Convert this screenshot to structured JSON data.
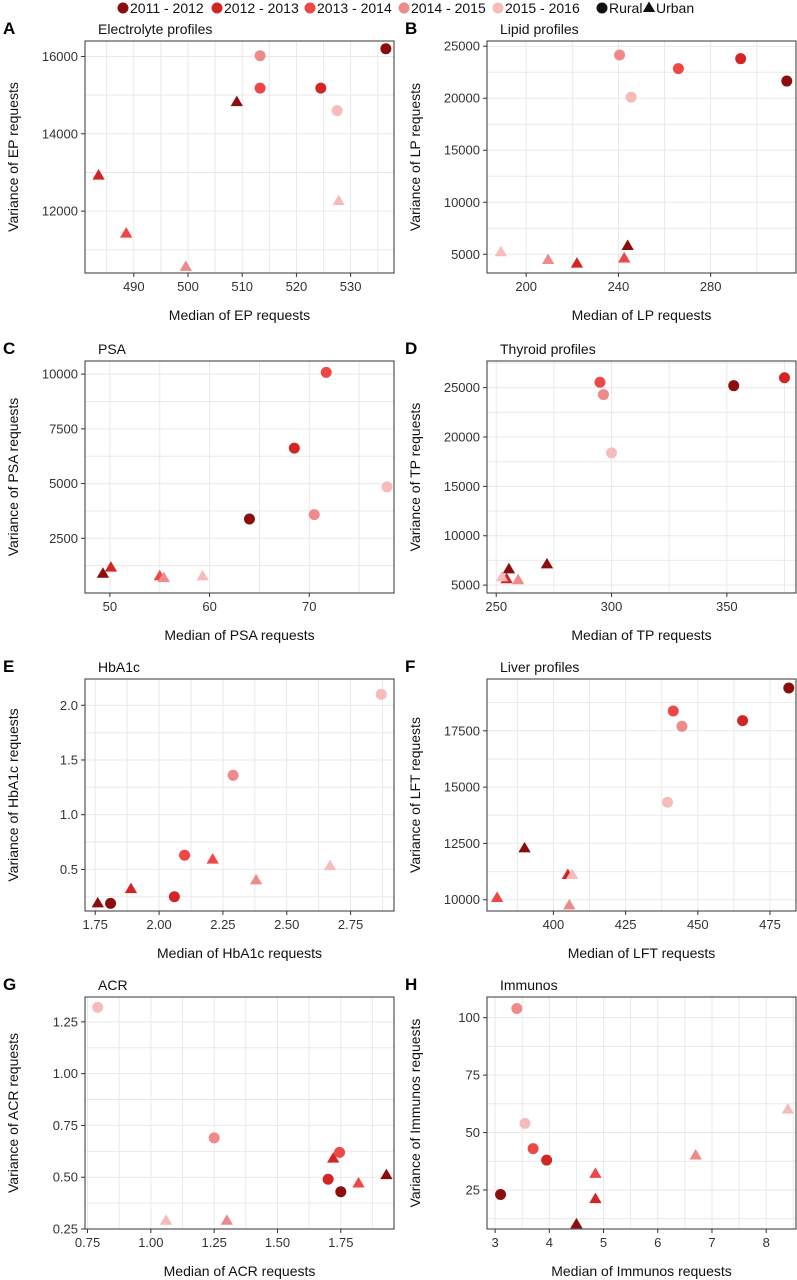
{
  "legend": {
    "years": [
      {
        "label": "2011 - 2012",
        "color": "#8b0d0d"
      },
      {
        "label": "2012 - 2013",
        "color": "#d42525"
      },
      {
        "label": "2013 - 2014",
        "color": "#ee4747"
      },
      {
        "label": "2014 - 2015",
        "color": "#ef8a8a"
      },
      {
        "label": "2015 - 2016",
        "color": "#f6bcbc"
      }
    ],
    "shapes": [
      {
        "label": "Rural",
        "shape": "circle"
      },
      {
        "label": "Urban",
        "shape": "triangle"
      }
    ]
  },
  "chart_data": [
    {
      "letter": "A",
      "title": "Electrolyte profiles",
      "type": "scatter",
      "xlabel": "Median of EP requests",
      "ylabel": "Variance of EP requests",
      "xlim": [
        481,
        538
      ],
      "ylim": [
        10400,
        16400
      ],
      "xticks": [
        490,
        500,
        510,
        520,
        530
      ],
      "yticks": [
        12000,
        14000,
        16000
      ],
      "points": [
        {
          "x": 536.5,
          "y": 16200,
          "year": 0,
          "shape": "circle"
        },
        {
          "x": 513.3,
          "y": 16020,
          "year": 3,
          "shape": "circle"
        },
        {
          "x": 513.3,
          "y": 15180,
          "year": 2,
          "shape": "circle"
        },
        {
          "x": 524.5,
          "y": 15180,
          "year": 1,
          "shape": "circle"
        },
        {
          "x": 527.5,
          "y": 14600,
          "year": 4,
          "shape": "circle"
        },
        {
          "x": 509.0,
          "y": 14820,
          "year": 0,
          "shape": "triangle"
        },
        {
          "x": 483.5,
          "y": 12920,
          "year": 1,
          "shape": "triangle"
        },
        {
          "x": 488.6,
          "y": 11420,
          "year": 2,
          "shape": "triangle"
        },
        {
          "x": 499.6,
          "y": 10560,
          "year": 3,
          "shape": "triangle"
        },
        {
          "x": 527.8,
          "y": 12260,
          "year": 4,
          "shape": "triangle"
        }
      ]
    },
    {
      "letter": "B",
      "title": "Lipid profiles",
      "type": "scatter",
      "xlabel": "Median of LP requests",
      "ylabel": "Variance of LP requests",
      "xlim": [
        183,
        317
      ],
      "ylim": [
        3200,
        25500
      ],
      "xticks": [
        200,
        240,
        280
      ],
      "yticks": [
        5000,
        10000,
        15000,
        20000,
        25000
      ],
      "points": [
        {
          "x": 313.0,
          "y": 21650,
          "year": 0,
          "shape": "circle"
        },
        {
          "x": 293.0,
          "y": 23800,
          "year": 1,
          "shape": "circle"
        },
        {
          "x": 266.0,
          "y": 22850,
          "year": 2,
          "shape": "circle"
        },
        {
          "x": 240.5,
          "y": 24150,
          "year": 3,
          "shape": "circle"
        },
        {
          "x": 245.5,
          "y": 20100,
          "year": 4,
          "shape": "circle"
        },
        {
          "x": 244.0,
          "y": 5800,
          "year": 0,
          "shape": "triangle"
        },
        {
          "x": 222.0,
          "y": 4100,
          "year": 1,
          "shape": "triangle"
        },
        {
          "x": 242.5,
          "y": 4600,
          "year": 2,
          "shape": "triangle"
        },
        {
          "x": 209.5,
          "y": 4450,
          "year": 3,
          "shape": "triangle"
        },
        {
          "x": 189.0,
          "y": 5200,
          "year": 4,
          "shape": "triangle"
        }
      ]
    },
    {
      "letter": "C",
      "title": "PSA",
      "type": "scatter",
      "xlabel": "Median of PSA requests",
      "ylabel": "Variance of PSA requests",
      "xlim": [
        47.5,
        78.5
      ],
      "ylim": [
        0,
        10600
      ],
      "xticks": [
        50,
        60,
        70
      ],
      "yticks": [
        2500,
        5000,
        7500,
        10000
      ],
      "points": [
        {
          "x": 64.0,
          "y": 3380,
          "year": 0,
          "shape": "circle"
        },
        {
          "x": 68.5,
          "y": 6620,
          "year": 1,
          "shape": "circle"
        },
        {
          "x": 71.7,
          "y": 10080,
          "year": 2,
          "shape": "circle"
        },
        {
          "x": 70.5,
          "y": 3580,
          "year": 3,
          "shape": "circle"
        },
        {
          "x": 77.8,
          "y": 4850,
          "year": 4,
          "shape": "circle"
        },
        {
          "x": 49.3,
          "y": 880,
          "year": 0,
          "shape": "triangle"
        },
        {
          "x": 50.1,
          "y": 1160,
          "year": 1,
          "shape": "triangle"
        },
        {
          "x": 55.0,
          "y": 760,
          "year": 2,
          "shape": "triangle"
        },
        {
          "x": 55.4,
          "y": 680,
          "year": 3,
          "shape": "triangle"
        },
        {
          "x": 59.3,
          "y": 760,
          "year": 4,
          "shape": "triangle"
        }
      ]
    },
    {
      "letter": "D",
      "title": "Thyroid profiles",
      "type": "scatter",
      "xlabel": "Median of TP requests",
      "ylabel": "Variance of TP requests",
      "xlim": [
        246,
        380
      ],
      "ylim": [
        4200,
        27700
      ],
      "xticks": [
        250,
        300,
        350
      ],
      "yticks": [
        5000,
        10000,
        15000,
        20000,
        25000
      ],
      "points": [
        {
          "x": 353.0,
          "y": 25200,
          "year": 0,
          "shape": "circle"
        },
        {
          "x": 375.0,
          "y": 26000,
          "year": 1,
          "shape": "circle"
        },
        {
          "x": 295.0,
          "y": 25550,
          "year": 2,
          "shape": "circle"
        },
        {
          "x": 296.5,
          "y": 24300,
          "year": 3,
          "shape": "circle"
        },
        {
          "x": 300.0,
          "y": 18400,
          "year": 4,
          "shape": "circle"
        },
        {
          "x": 255.5,
          "y": 6600,
          "year": 0,
          "shape": "triangle"
        },
        {
          "x": 272.0,
          "y": 7100,
          "year": 0,
          "shape": "triangle"
        },
        {
          "x": 254.5,
          "y": 5600,
          "year": 1,
          "shape": "triangle"
        },
        {
          "x": 259.5,
          "y": 5500,
          "year": 3,
          "shape": "triangle"
        },
        {
          "x": 252.5,
          "y": 5800,
          "year": 4,
          "shape": "triangle"
        }
      ]
    },
    {
      "letter": "E",
      "title": "HbA1c",
      "type": "scatter",
      "xlabel": "Median of HbA1c requests",
      "ylabel": "Variance of HbA1c requests",
      "xlim": [
        1.71,
        2.92
      ],
      "ylim": [
        0.12,
        2.24
      ],
      "xticks": [
        1.75,
        2.0,
        2.25,
        2.5,
        2.75
      ],
      "xtick_labels": [
        "1.75",
        "2.00",
        "2.25",
        "2.50",
        "2.75"
      ],
      "yticks": [
        0.5,
        1.0,
        1.5,
        2.0
      ],
      "ytick_labels": [
        "0.5",
        "1.0",
        "1.5",
        "2.0"
      ],
      "points": [
        {
          "x": 1.81,
          "y": 0.19,
          "year": 0,
          "shape": "circle"
        },
        {
          "x": 2.06,
          "y": 0.25,
          "year": 1,
          "shape": "circle"
        },
        {
          "x": 2.1,
          "y": 0.63,
          "year": 2,
          "shape": "circle"
        },
        {
          "x": 2.29,
          "y": 1.36,
          "year": 3,
          "shape": "circle"
        },
        {
          "x": 2.87,
          "y": 2.1,
          "year": 4,
          "shape": "circle"
        },
        {
          "x": 1.76,
          "y": 0.19,
          "year": 0,
          "shape": "triangle"
        },
        {
          "x": 1.89,
          "y": 0.32,
          "year": 1,
          "shape": "triangle"
        },
        {
          "x": 2.21,
          "y": 0.59,
          "year": 2,
          "shape": "triangle"
        },
        {
          "x": 2.38,
          "y": 0.4,
          "year": 3,
          "shape": "triangle"
        },
        {
          "x": 2.67,
          "y": 0.53,
          "year": 4,
          "shape": "triangle"
        }
      ]
    },
    {
      "letter": "F",
      "title": "Liver profiles",
      "type": "scatter",
      "xlabel": "Median of LFT requests",
      "ylabel": "Variance of LFT requests",
      "xlim": [
        377,
        484
      ],
      "ylim": [
        9500,
        19800
      ],
      "xticks": [
        400,
        425,
        450,
        475
      ],
      "yticks": [
        10000,
        12500,
        15000,
        17500
      ],
      "points": [
        {
          "x": 481.5,
          "y": 19400,
          "year": 0,
          "shape": "circle"
        },
        {
          "x": 465.5,
          "y": 17950,
          "year": 1,
          "shape": "circle"
        },
        {
          "x": 441.5,
          "y": 18380,
          "year": 2,
          "shape": "circle"
        },
        {
          "x": 444.5,
          "y": 17700,
          "year": 3,
          "shape": "circle"
        },
        {
          "x": 439.5,
          "y": 14330,
          "year": 4,
          "shape": "circle"
        },
        {
          "x": 390.0,
          "y": 12280,
          "year": 0,
          "shape": "triangle"
        },
        {
          "x": 405.0,
          "y": 11100,
          "year": 1,
          "shape": "triangle"
        },
        {
          "x": 380.5,
          "y": 10080,
          "year": 2,
          "shape": "triangle"
        },
        {
          "x": 405.5,
          "y": 9750,
          "year": 3,
          "shape": "triangle"
        },
        {
          "x": 406.5,
          "y": 11100,
          "year": 4,
          "shape": "triangle"
        }
      ]
    },
    {
      "letter": "G",
      "title": "ACR",
      "type": "scatter",
      "xlabel": "Median of ACR requests",
      "ylabel": "Variance of ACR requests",
      "xlim": [
        0.74,
        1.96
      ],
      "ylim": [
        0.25,
        1.37
      ],
      "xticks": [
        0.75,
        1.0,
        1.25,
        1.5,
        1.75
      ],
      "xtick_labels": [
        "0.75",
        "1.00",
        "1.25",
        "1.50",
        "1.75"
      ],
      "yticks": [
        0.25,
        0.5,
        0.75,
        1.0,
        1.25
      ],
      "ytick_labels": [
        "0.25",
        "0.50",
        "0.75",
        "1.00",
        "1.25"
      ],
      "points": [
        {
          "x": 1.75,
          "y": 0.43,
          "year": 0,
          "shape": "circle"
        },
        {
          "x": 1.7,
          "y": 0.49,
          "year": 1,
          "shape": "circle"
        },
        {
          "x": 1.745,
          "y": 0.62,
          "year": 2,
          "shape": "circle"
        },
        {
          "x": 1.25,
          "y": 0.69,
          "year": 3,
          "shape": "circle"
        },
        {
          "x": 0.79,
          "y": 1.32,
          "year": 4,
          "shape": "circle"
        },
        {
          "x": 1.93,
          "y": 0.51,
          "year": 0,
          "shape": "triangle"
        },
        {
          "x": 1.72,
          "y": 0.59,
          "year": 1,
          "shape": "triangle"
        },
        {
          "x": 1.82,
          "y": 0.47,
          "year": 2,
          "shape": "triangle"
        },
        {
          "x": 1.3,
          "y": 0.29,
          "year": 3,
          "shape": "triangle"
        },
        {
          "x": 1.06,
          "y": 0.29,
          "year": 4,
          "shape": "triangle"
        }
      ]
    },
    {
      "letter": "H",
      "title": "Immunos",
      "type": "scatter",
      "xlabel": "Median of Immunos requests",
      "ylabel": "Variance of Immunos requests",
      "xlim": [
        2.85,
        8.55
      ],
      "ylim": [
        8,
        109
      ],
      "xticks": [
        3,
        4,
        5,
        6,
        7,
        8
      ],
      "yticks": [
        25,
        50,
        75,
        100
      ],
      "points": [
        {
          "x": 3.1,
          "y": 23,
          "year": 0,
          "shape": "circle"
        },
        {
          "x": 3.95,
          "y": 38,
          "year": 1,
          "shape": "circle"
        },
        {
          "x": 3.7,
          "y": 43,
          "year": 2,
          "shape": "circle"
        },
        {
          "x": 3.4,
          "y": 104,
          "year": 3,
          "shape": "circle"
        },
        {
          "x": 3.55,
          "y": 54,
          "year": 4,
          "shape": "circle"
        },
        {
          "x": 4.5,
          "y": 10,
          "year": 0,
          "shape": "triangle"
        },
        {
          "x": 4.85,
          "y": 21,
          "year": 1,
          "shape": "triangle"
        },
        {
          "x": 4.85,
          "y": 32,
          "year": 2,
          "shape": "triangle"
        },
        {
          "x": 6.7,
          "y": 40,
          "year": 3,
          "shape": "triangle"
        },
        {
          "x": 8.4,
          "y": 60,
          "year": 4,
          "shape": "triangle"
        }
      ]
    }
  ]
}
